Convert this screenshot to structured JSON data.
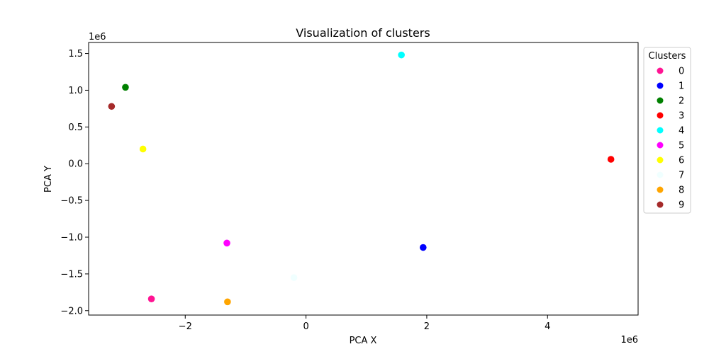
{
  "chart_data": {
    "type": "scatter",
    "title": "Visualization of clusters",
    "xlabel": "PCA X",
    "ylabel": "PCA Y",
    "x_offset_label": "1e6",
    "y_offset_label": "1e6",
    "xlim": [
      -3.6,
      5.5
    ],
    "ylim": [
      -2.06,
      1.65
    ],
    "x_ticks": [
      -2,
      0,
      2,
      4
    ],
    "x_tick_labels": [
      "−2",
      "0",
      "2",
      "4"
    ],
    "y_ticks": [
      -2.0,
      -1.5,
      -1.0,
      -0.5,
      0.0,
      0.5,
      1.0,
      1.5
    ],
    "y_tick_labels": [
      "−2.0",
      "−1.5",
      "−1.0",
      "−0.5",
      "0.0",
      "0.5",
      "1.0",
      "1.5"
    ],
    "grid": false,
    "legend": {
      "title": "Clusters",
      "placement": "outside-right-top"
    },
    "series": [
      {
        "name": "0",
        "color": "#ff1493",
        "points": [
          [
            -2.56,
            -1.84
          ]
        ]
      },
      {
        "name": "1",
        "color": "#0000ff",
        "points": [
          [
            1.94,
            -1.14
          ]
        ]
      },
      {
        "name": "2",
        "color": "#008000",
        "points": [
          [
            -2.99,
            1.04
          ]
        ]
      },
      {
        "name": "3",
        "color": "#ff0000",
        "points": [
          [
            5.05,
            0.06
          ]
        ]
      },
      {
        "name": "4",
        "color": "#00ffff",
        "points": [
          [
            1.58,
            1.48
          ]
        ]
      },
      {
        "name": "5",
        "color": "#ff00ff",
        "points": [
          [
            -1.31,
            -1.08
          ]
        ]
      },
      {
        "name": "6",
        "color": "#ffff00",
        "points": [
          [
            -2.7,
            0.2
          ]
        ]
      },
      {
        "name": "7",
        "color": "#f0ffff",
        "points": [
          [
            -0.2,
            -1.55
          ]
        ]
      },
      {
        "name": "8",
        "color": "#ffa500",
        "points": [
          [
            -1.3,
            -1.88
          ]
        ]
      },
      {
        "name": "9",
        "color": "#a52a2a",
        "points": [
          [
            -3.22,
            0.78
          ]
        ]
      }
    ]
  }
}
